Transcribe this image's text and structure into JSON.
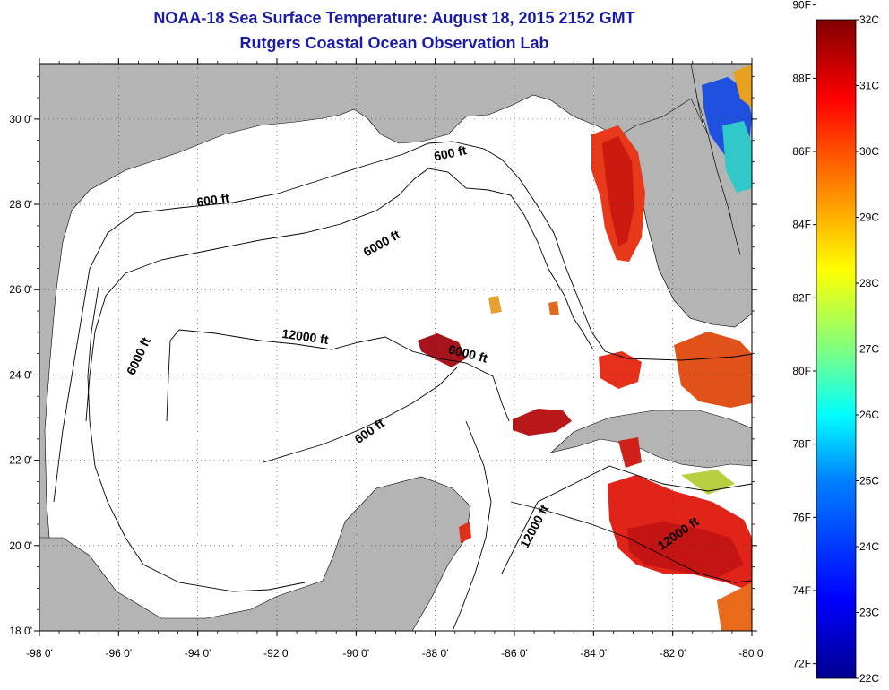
{
  "title": "NOAA-18 Sea Surface Temperature:  August 18, 2015 2152 GMT",
  "subtitle": "Rutgers Coastal Ocean Observation Lab",
  "map": {
    "lat_labels": [
      "30 0'",
      "28 0'",
      "26 0'",
      "24 0'",
      "22 0'",
      "20 0'",
      "18 0'"
    ],
    "lat_values": [
      30,
      28,
      26,
      24,
      22,
      20,
      18
    ],
    "lon_labels": [
      "-98 0'",
      "-96 0'",
      "-94 0'",
      "-92 0'",
      "-90 0'",
      "-88 0'",
      "-86 0'",
      "-84 0'",
      "-82 0'",
      "-80 0'"
    ],
    "lon_values": [
      -98,
      -96,
      -94,
      -92,
      -90,
      -88,
      -86,
      -84,
      -82,
      -80
    ],
    "lat_range": [
      18,
      31.3
    ],
    "lon_range": [
      -98,
      -80
    ],
    "grid": "dotted",
    "land_color": "#b4b4b4",
    "water_color": "#ffffff",
    "contour_labels": [
      {
        "text": "600 ft",
        "lon": -93.6,
        "lat": 28.0,
        "angle": -8
      },
      {
        "text": "600 ft",
        "lon": -87.6,
        "lat": 29.1,
        "angle": -12
      },
      {
        "text": "6000 ft",
        "lon": -89.3,
        "lat": 27.0,
        "angle": -30
      },
      {
        "text": "12000 ft",
        "lon": -91.3,
        "lat": 24.8,
        "angle": 8
      },
      {
        "text": "6000 ft",
        "lon": -87.2,
        "lat": 24.4,
        "angle": 14
      },
      {
        "text": "6000 ft",
        "lon": -95.4,
        "lat": 24.4,
        "angle": -65
      },
      {
        "text": "600 ft",
        "lon": -89.6,
        "lat": 22.6,
        "angle": -35
      },
      {
        "text": "12000 ft",
        "lon": -85.4,
        "lat": 20.4,
        "angle": -62
      },
      {
        "text": "12000 ft",
        "lon": -81.8,
        "lat": 20.2,
        "angle": -35
      }
    ]
  },
  "colorbar": {
    "f_labels": [
      "90F",
      "88F",
      "86F",
      "84F",
      "82F",
      "80F",
      "78F",
      "76F",
      "74F",
      "72F"
    ],
    "f_values": [
      90,
      88,
      86,
      84,
      82,
      80,
      78,
      76,
      74,
      72
    ],
    "c_labels": [
      "32C",
      "31C",
      "30C",
      "29C",
      "28C",
      "27C",
      "26C",
      "25C",
      "24C",
      "23C",
      "22C"
    ],
    "c_values": [
      32,
      31,
      30,
      29,
      28,
      27,
      26,
      25,
      24,
      23,
      22
    ],
    "range_c": [
      22,
      32
    ],
    "colormap": [
      "#00008f",
      "#0000ff",
      "#0080ff",
      "#00ffff",
      "#80ff80",
      "#ffff00",
      "#ff8000",
      "#ff0000",
      "#800000"
    ]
  }
}
